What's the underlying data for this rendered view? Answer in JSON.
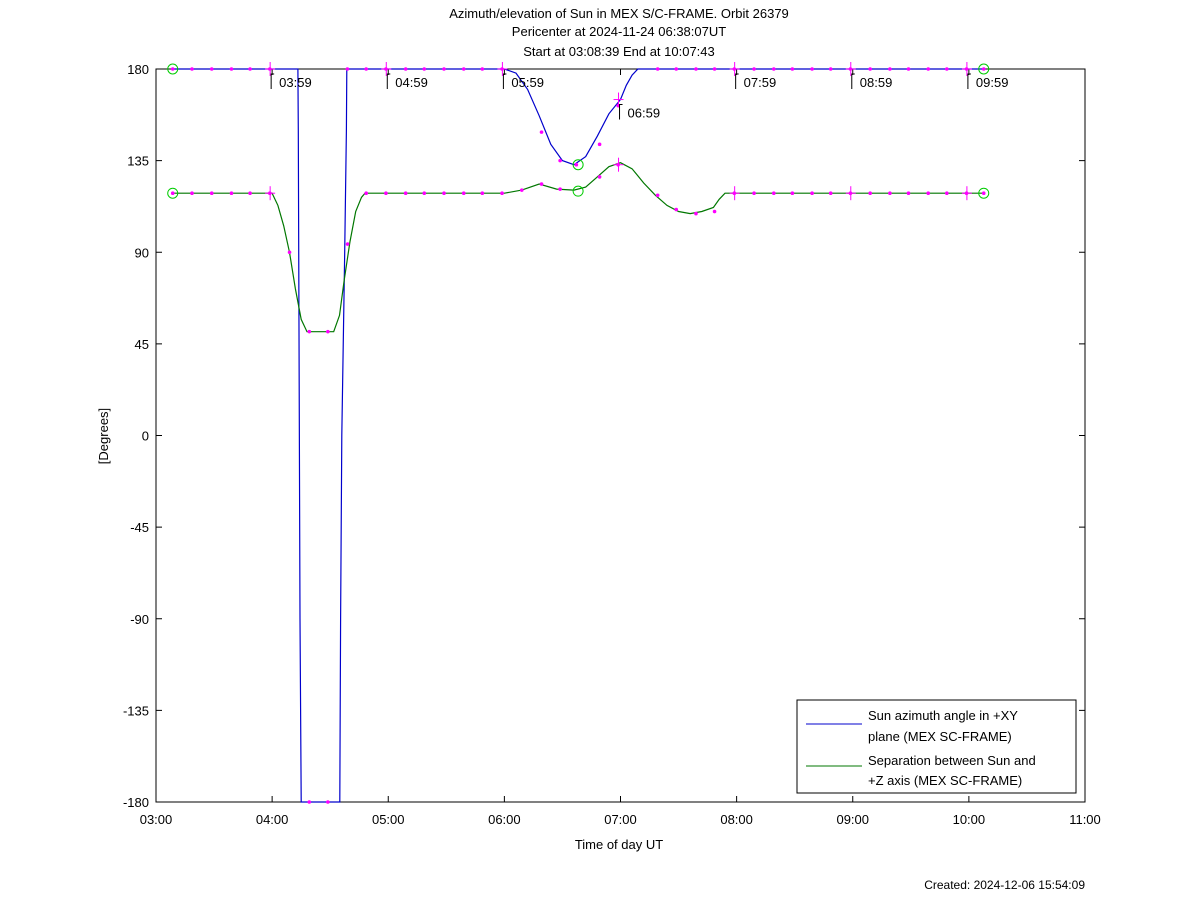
{
  "chart_data": {
    "type": "line",
    "title_lines": [
      "Azimuth/elevation of Sun in MEX S/C-FRAME.  Orbit 26379",
      "Pericenter at 2024-11-24 06:38:07UT",
      "Start at 03:08:39 End at 10:07:43"
    ],
    "xlabel": "Time of day UT",
    "ylabel": "[Degrees]",
    "footer": "Created: 2024-12-06 15:54:09",
    "xlim": [
      3.0,
      11.0
    ],
    "ylim": [
      -180,
      180
    ],
    "xticks": [
      3,
      4,
      5,
      6,
      7,
      8,
      9,
      10,
      11
    ],
    "xtick_labels": [
      "03:00",
      "04:00",
      "05:00",
      "06:00",
      "07:00",
      "08:00",
      "09:00",
      "10:00",
      "11:00"
    ],
    "yticks": [
      180,
      135,
      90,
      45,
      0,
      -45,
      -90,
      -135,
      -180
    ],
    "ytick_labels": [
      "180",
      "135",
      "90",
      "45",
      "0",
      "-45",
      "-90",
      "-135",
      "-180"
    ],
    "grid": false,
    "legend_position": "bottom-right",
    "colors": {
      "azimuth": "#0000cc",
      "separation": "#007700",
      "markers": "#ff00ff",
      "endpoints": "#00cc00"
    },
    "series": [
      {
        "name_lines": [
          "Sun azimuth angle in +XY",
          "plane (MEX SC-FRAME)"
        ],
        "color_key": "azimuth",
        "x": [
          3.144,
          3.3,
          3.5,
          3.7,
          3.9,
          4.0,
          4.15,
          4.222,
          4.225,
          4.24,
          4.25,
          4.583,
          4.59,
          4.6,
          4.625,
          4.64,
          4.643,
          4.65,
          4.7,
          4.9,
          5.1,
          5.3,
          5.5,
          5.7,
          5.9,
          6.0,
          6.1,
          6.2,
          6.3,
          6.4,
          6.5,
          6.6,
          6.7,
          6.8,
          6.9,
          7.0,
          7.05,
          7.1,
          7.15,
          7.3,
          7.5,
          7.7,
          8.0,
          8.5,
          9.0,
          9.5,
          10.0,
          10.128
        ],
        "y": [
          180,
          180,
          180,
          180,
          180,
          180,
          180,
          180,
          150,
          -90,
          -180,
          -180,
          -90,
          0,
          90,
          150,
          180,
          180,
          180,
          180,
          180,
          180,
          180,
          180,
          180,
          180,
          178,
          170,
          157,
          143,
          135,
          133,
          137,
          147,
          158,
          165,
          172,
          177,
          180,
          180,
          180,
          180,
          180,
          180,
          180,
          180,
          180,
          180
        ]
      },
      {
        "name_lines": [
          "Separation between Sun and",
          "+Z axis (MEX SC-FRAME)"
        ],
        "color_key": "separation",
        "x": [
          3.144,
          3.3,
          3.5,
          3.7,
          3.9,
          4.0,
          4.05,
          4.1,
          4.15,
          4.2,
          4.25,
          4.3,
          4.35,
          4.5,
          4.53,
          4.58,
          4.62,
          4.67,
          4.72,
          4.77,
          4.8,
          5.0,
          5.5,
          6.0,
          6.15,
          6.3,
          6.45,
          6.6,
          6.7,
          6.8,
          6.9,
          7.0,
          7.1,
          7.2,
          7.3,
          7.4,
          7.5,
          7.6,
          7.7,
          7.8,
          7.85,
          7.9,
          8.0,
          8.5,
          9.0,
          9.5,
          10.0,
          10.128
        ],
        "y": [
          119,
          119,
          119,
          119,
          119,
          119,
          113,
          103,
          90,
          72,
          57,
          51,
          51,
          51,
          51,
          59,
          76,
          95,
          110,
          117,
          119,
          119,
          119,
          119,
          120.5,
          123.5,
          121,
          120.5,
          122,
          127,
          132,
          134,
          131,
          124,
          118,
          113,
          110,
          109,
          110,
          112,
          116,
          119,
          119,
          119,
          119,
          119,
          119,
          119
        ]
      }
    ],
    "marker_points": [
      {
        "x": 3.144,
        "y": 180
      },
      {
        "x": 3.31,
        "y": 180
      },
      {
        "x": 3.48,
        "y": 180
      },
      {
        "x": 3.65,
        "y": 180
      },
      {
        "x": 3.81,
        "y": 180
      },
      {
        "x": 3.98,
        "y": 180
      },
      {
        "x": 4.648,
        "y": 180
      },
      {
        "x": 4.81,
        "y": 180
      },
      {
        "x": 4.98,
        "y": 180
      },
      {
        "x": 5.15,
        "y": 180
      },
      {
        "x": 5.31,
        "y": 180
      },
      {
        "x": 5.48,
        "y": 180
      },
      {
        "x": 5.65,
        "y": 180
      },
      {
        "x": 5.81,
        "y": 180
      },
      {
        "x": 5.98,
        "y": 180
      },
      {
        "x": 6.32,
        "y": 149
      },
      {
        "x": 6.48,
        "y": 135
      },
      {
        "x": 6.62,
        "y": 133
      },
      {
        "x": 6.82,
        "y": 143
      },
      {
        "x": 6.98,
        "y": 162
      },
      {
        "x": 7.32,
        "y": 180
      },
      {
        "x": 7.48,
        "y": 180
      },
      {
        "x": 7.65,
        "y": 180
      },
      {
        "x": 7.81,
        "y": 180
      },
      {
        "x": 7.98,
        "y": 180
      },
      {
        "x": 8.15,
        "y": 180
      },
      {
        "x": 8.32,
        "y": 180
      },
      {
        "x": 8.48,
        "y": 180
      },
      {
        "x": 8.65,
        "y": 180
      },
      {
        "x": 8.81,
        "y": 180
      },
      {
        "x": 8.98,
        "y": 180
      },
      {
        "x": 9.15,
        "y": 180
      },
      {
        "x": 9.32,
        "y": 180
      },
      {
        "x": 9.48,
        "y": 180
      },
      {
        "x": 9.65,
        "y": 180
      },
      {
        "x": 9.81,
        "y": 180
      },
      {
        "x": 9.98,
        "y": 180
      },
      {
        "x": 10.128,
        "y": 180
      },
      {
        "x": 4.32,
        "y": -180
      },
      {
        "x": 4.48,
        "y": -180
      },
      {
        "x": 3.144,
        "y": 119
      },
      {
        "x": 3.31,
        "y": 119
      },
      {
        "x": 3.48,
        "y": 119
      },
      {
        "x": 3.65,
        "y": 119
      },
      {
        "x": 3.81,
        "y": 119
      },
      {
        "x": 3.98,
        "y": 119
      },
      {
        "x": 4.15,
        "y": 90
      },
      {
        "x": 4.32,
        "y": 51
      },
      {
        "x": 4.48,
        "y": 51
      },
      {
        "x": 4.65,
        "y": 94
      },
      {
        "x": 4.81,
        "y": 119
      },
      {
        "x": 4.98,
        "y": 119
      },
      {
        "x": 5.15,
        "y": 119
      },
      {
        "x": 5.31,
        "y": 119
      },
      {
        "x": 5.48,
        "y": 119
      },
      {
        "x": 5.65,
        "y": 119
      },
      {
        "x": 5.81,
        "y": 119
      },
      {
        "x": 5.98,
        "y": 119
      },
      {
        "x": 6.15,
        "y": 120.5
      },
      {
        "x": 6.32,
        "y": 123.5
      },
      {
        "x": 6.48,
        "y": 121
      },
      {
        "x": 6.82,
        "y": 127
      },
      {
        "x": 6.98,
        "y": 133
      },
      {
        "x": 7.32,
        "y": 118
      },
      {
        "x": 7.48,
        "y": 111
      },
      {
        "x": 7.65,
        "y": 109
      },
      {
        "x": 7.81,
        "y": 110
      },
      {
        "x": 7.98,
        "y": 119
      },
      {
        "x": 8.15,
        "y": 119
      },
      {
        "x": 8.32,
        "y": 119
      },
      {
        "x": 8.48,
        "y": 119
      },
      {
        "x": 8.65,
        "y": 119
      },
      {
        "x": 8.81,
        "y": 119
      },
      {
        "x": 8.98,
        "y": 119
      },
      {
        "x": 9.15,
        "y": 119
      },
      {
        "x": 9.32,
        "y": 119
      },
      {
        "x": 9.48,
        "y": 119
      },
      {
        "x": 9.65,
        "y": 119
      },
      {
        "x": 9.81,
        "y": 119
      },
      {
        "x": 9.98,
        "y": 119
      },
      {
        "x": 10.128,
        "y": 119
      }
    ],
    "hour_ticks": [
      {
        "x": 3.983,
        "y": 180
      },
      {
        "x": 4.983,
        "y": 180
      },
      {
        "x": 5.983,
        "y": 180
      },
      {
        "x": 6.983,
        "y": 165
      },
      {
        "x": 7.983,
        "y": 180
      },
      {
        "x": 8.983,
        "y": 180
      },
      {
        "x": 9.983,
        "y": 180
      },
      {
        "x": 3.983,
        "y": 119
      },
      {
        "x": 6.983,
        "y": 133
      },
      {
        "x": 7.983,
        "y": 119
      },
      {
        "x": 8.983,
        "y": 119
      },
      {
        "x": 9.983,
        "y": 119
      }
    ],
    "time_annotations": [
      {
        "label": "03:59",
        "x": 3.983,
        "y": 180
      },
      {
        "label": "04:59",
        "x": 4.983,
        "y": 180
      },
      {
        "label": "05:59",
        "x": 5.983,
        "y": 180
      },
      {
        "label": "06:59",
        "x": 6.983,
        "y": 165
      },
      {
        "label": "07:59",
        "x": 7.983,
        "y": 180
      },
      {
        "label": "08:59",
        "x": 8.983,
        "y": 180
      },
      {
        "label": "09:59",
        "x": 9.983,
        "y": 180
      }
    ],
    "circle_points": [
      {
        "x": 3.144,
        "y": 180
      },
      {
        "x": 3.144,
        "y": 119
      },
      {
        "x": 6.635,
        "y": 133
      },
      {
        "x": 6.635,
        "y": 120
      },
      {
        "x": 10.128,
        "y": 180
      },
      {
        "x": 10.128,
        "y": 119
      }
    ]
  }
}
